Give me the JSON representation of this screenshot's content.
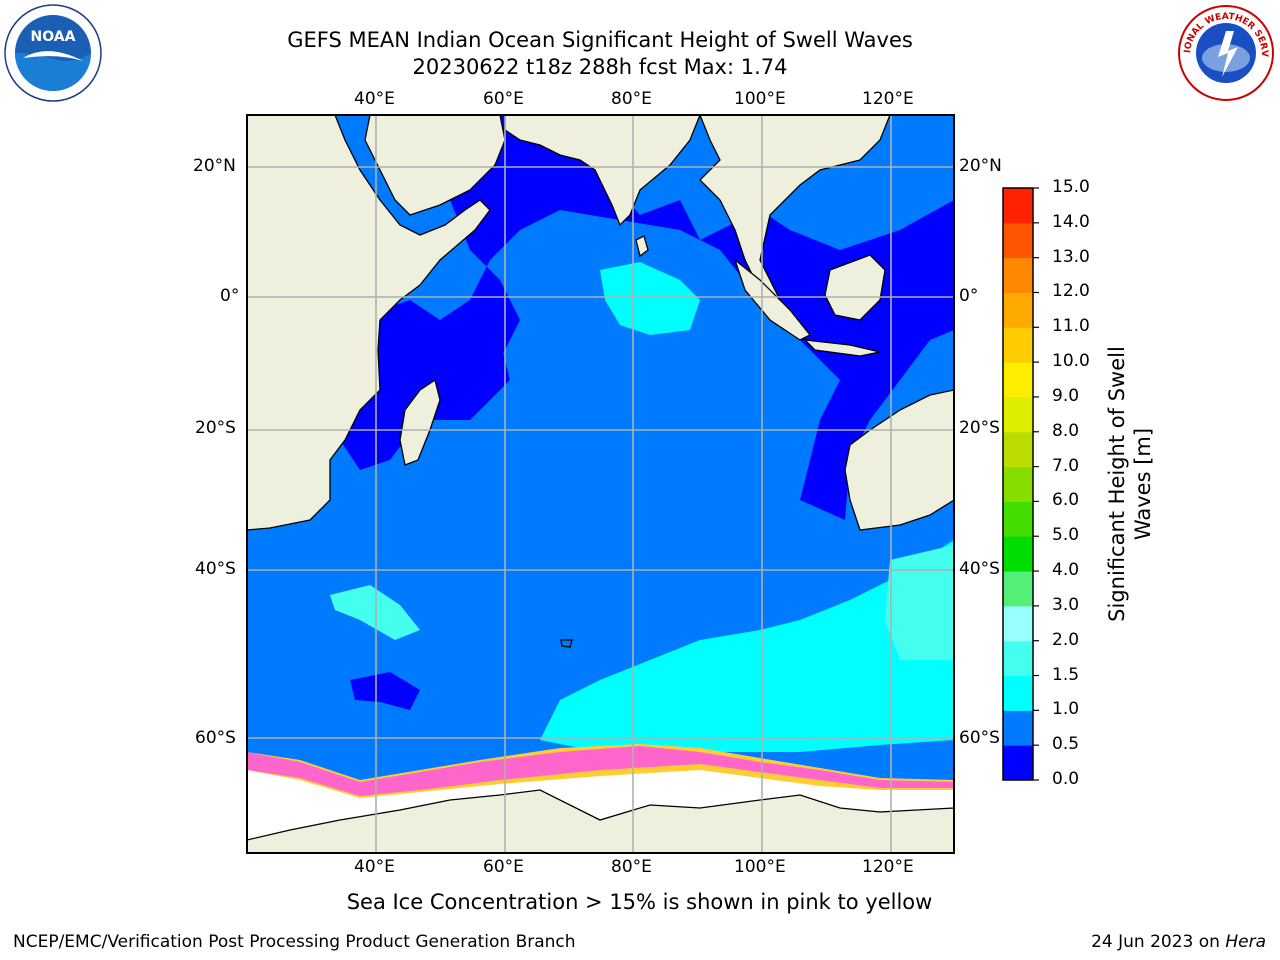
{
  "header": {
    "title_line1": "GEFS MEAN Indian Ocean Significant Height of Swell Waves",
    "title_line2": "20230622 t18z 288h fcst   Max: 1.74"
  },
  "map": {
    "lon_labels": [
      "40°E",
      "60°E",
      "80°E",
      "100°E",
      "120°E"
    ],
    "lat_labels": [
      "20°N",
      "0°",
      "20°S",
      "40°S",
      "60°S"
    ],
    "lon_range": [
      20,
      130
    ],
    "lat_range": [
      -72,
      28
    ],
    "colors": {
      "land": "#efefdd",
      "ocean_deep": "#007bff",
      "ocean_low": "#0000ff",
      "ocean_mid": "#00ffff",
      "sea_ice": "#ffffff",
      "ice_edge_pink": "#ff66cc",
      "ice_edge_yellow": "#ffcc33"
    }
  },
  "colorbar": {
    "label": "Significant Height of Swell Waves [m]",
    "ticks": [
      "0.0",
      "0.5",
      "1.0",
      "1.5",
      "2.0",
      "3.0",
      "4.0",
      "5.0",
      "6.0",
      "7.0",
      "8.0",
      "9.0",
      "10.0",
      "11.0",
      "12.0",
      "13.0",
      "14.0",
      "15.0"
    ],
    "colors": [
      "#0000ff",
      "#007bff",
      "#00ffff",
      "#44ffee",
      "#99ffff",
      "#55ee77",
      "#00dd00",
      "#44dd00",
      "#88dd00",
      "#bbdd00",
      "#ddee00",
      "#ffee00",
      "#ffcc00",
      "#ffaa00",
      "#ff8800",
      "#ff5500",
      "#ff2200"
    ]
  },
  "caption": "Sea Ice Concentration > 15% is shown in pink to yellow",
  "footer": {
    "left": "NCEP/EMC/Verification Post Processing Product Generation Branch",
    "right_prefix": "24 Jun 2023 on ",
    "right_machine": "Hera"
  },
  "logos": {
    "noaa_text": "NOAA",
    "nws_text": "NATIONAL WEATHER SERVICE"
  }
}
